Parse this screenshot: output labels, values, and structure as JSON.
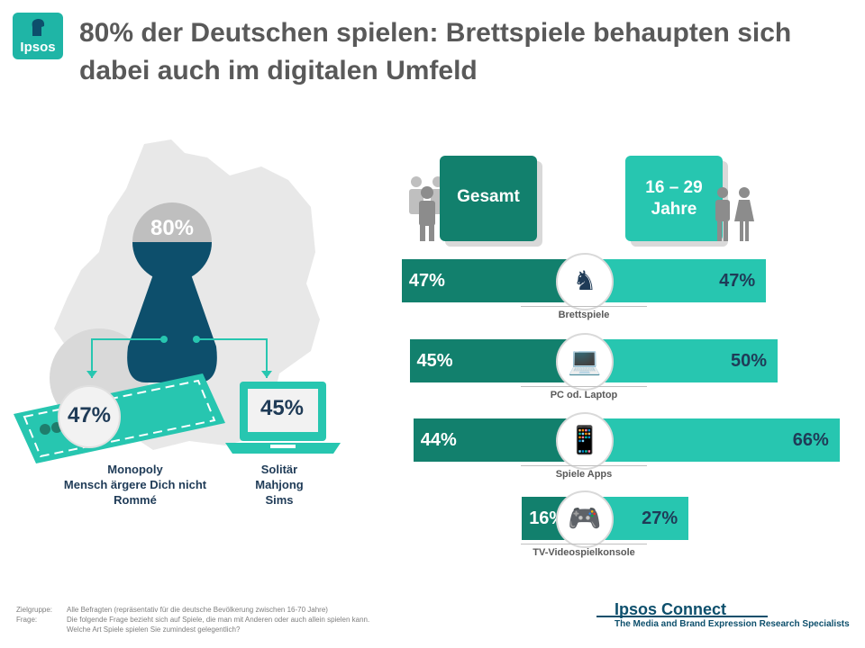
{
  "header": {
    "logo": "Ipsos",
    "title_line1": "80% der Deutschen spielen: Brettspiele behaupten sich",
    "title_line2": "dabei auch im digitalen Umfeld"
  },
  "left": {
    "total_pct": "80%",
    "board_pct": "47%",
    "digital_pct": "45%",
    "board_games": [
      "Monopoly",
      "Mensch ärgere Dich nicht",
      "Rommé"
    ],
    "digital_games": [
      "Solitär",
      "Mahjong",
      "Sims"
    ]
  },
  "chart_data": {
    "type": "bar",
    "title": "",
    "series_names": [
      "Gesamt",
      "16 – 29 Jahre"
    ],
    "header_gesamt": "Gesamt",
    "header_young_line1": "16 – 29",
    "header_young_line2": "Jahre",
    "categories": [
      "Brettspiele",
      "PC od. Laptop",
      "Spiele Apps",
      "TV-Videospielkonsole"
    ],
    "series": [
      {
        "name": "Gesamt",
        "values": [
          47,
          45,
          44,
          16
        ],
        "labels": [
          "47%",
          "45%",
          "44%",
          "16%"
        ]
      },
      {
        "name": "16 – 29 Jahre",
        "values": [
          47,
          50,
          66,
          27
        ],
        "labels": [
          "47%",
          "50%",
          "66%",
          "27%"
        ]
      }
    ],
    "colors": {
      "gesamt": "#12806d",
      "young": "#27c6b0"
    }
  },
  "footer": {
    "zielgruppe_label": "Zielgruppe:",
    "zielgruppe_text": "Alle Befragten (repräsentativ für die deutsche Bevölkerung zwischen 16-70 Jahre)",
    "frage_label": "Frage:",
    "frage_text1": "Die folgende Frage bezieht sich auf Spiele, die man mit Anderen oder auch allein spielen kann.",
    "frage_text2": "Welche Art Spiele spielen Sie zumindest gelegentlich?",
    "brand": "Ipsos Connect",
    "brand_sub": "The Media and Brand Expression Research Specialists"
  }
}
